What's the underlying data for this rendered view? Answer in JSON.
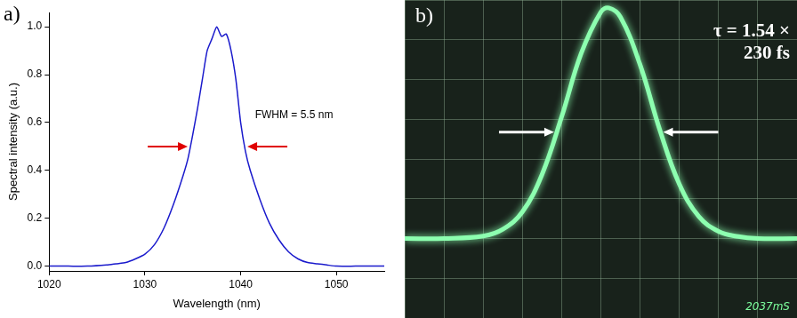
{
  "chart_data": [
    {
      "panel": "a)",
      "type": "line",
      "x_label": "Wavelength (nm)",
      "y_label": "Spectral intensity (a.u.)",
      "x": [
        1020,
        1022,
        1024,
        1026,
        1027,
        1028,
        1029,
        1030,
        1031,
        1032,
        1033,
        1034,
        1034.5,
        1035,
        1035.5,
        1036,
        1036.5,
        1037,
        1037.5,
        1038,
        1038.5,
        1039,
        1039.5,
        1040,
        1040.5,
        1041,
        1042,
        1043,
        1044,
        1045,
        1046,
        1047,
        1048,
        1049,
        1050,
        1052,
        1055
      ],
      "values": [
        0.0,
        0.0,
        0.0,
        0.005,
        0.01,
        0.015,
        0.03,
        0.05,
        0.09,
        0.16,
        0.26,
        0.38,
        0.45,
        0.55,
        0.66,
        0.78,
        0.9,
        0.95,
        1.0,
        0.96,
        0.97,
        0.9,
        0.78,
        0.6,
        0.48,
        0.4,
        0.28,
        0.18,
        0.11,
        0.06,
        0.03,
        0.015,
        0.01,
        0.005,
        0.0,
        0.0,
        0.0
      ],
      "color": "#1a1acc",
      "xlim": [
        1020,
        1055
      ],
      "xticks": [
        1020,
        1030,
        1040,
        1050
      ],
      "ylim": [
        -0.02,
        1.06
      ],
      "yticks": [
        {
          "value": 0,
          "label": "0.0"
        },
        {
          "value": 0.2,
          "label": "0.2"
        },
        {
          "value": 0.4,
          "label": "0.4"
        },
        {
          "value": 0.6,
          "label": "0.6"
        },
        {
          "value": 0.8,
          "label": "0.8"
        },
        {
          "value": 1.0,
          "label": "1.0"
        }
      ],
      "grid": false,
      "annotations": [
        {
          "text": "FWHM = 5.5 nm",
          "x": 1041.5,
          "y": 0.63
        }
      ]
    },
    {
      "panel": "b)",
      "type": "line",
      "x": [
        0,
        1,
        2,
        2.5,
        3,
        3.5,
        4,
        4.5,
        5,
        5.2,
        5.5,
        6,
        6.5,
        7,
        7.5,
        8,
        8.5,
        9,
        10
      ],
      "values": [
        2.0,
        2.0,
        2.06,
        2.23,
        2.67,
        3.61,
        5.06,
        6.66,
        7.7,
        7.8,
        7.57,
        6.37,
        4.74,
        3.37,
        2.55,
        2.18,
        2.05,
        2.0,
        2.0
      ],
      "color": "#8dffb0",
      "xlim": [
        0,
        10
      ],
      "xticks": [
        0,
        1,
        2,
        3,
        4,
        5,
        6,
        7,
        8,
        9,
        10
      ],
      "ylim": [
        0,
        8
      ],
      "yticks": [
        0,
        1,
        2,
        3,
        4,
        5,
        6,
        7,
        8
      ],
      "grid": true,
      "tick_labels": false,
      "annotation_lines": [
        "τ = 1.54 ×",
        "230 fs"
      ],
      "screen_text": "2037mS"
    }
  ]
}
